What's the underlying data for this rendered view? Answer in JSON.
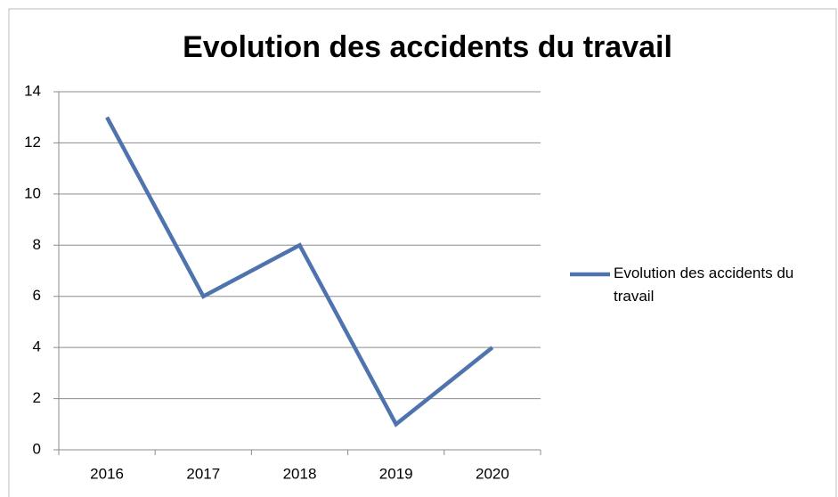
{
  "chart_data": {
    "type": "line",
    "title": "Evolution des accidents du travail",
    "categories": [
      "2016",
      "2017",
      "2018",
      "2019",
      "2020"
    ],
    "series": [
      {
        "name": "Evolution des accidents du travail",
        "color": "#4f74ad",
        "values": [
          13,
          6,
          8,
          1,
          4
        ]
      }
    ],
    "ylim": [
      0,
      14
    ],
    "yticks": [
      0,
      2,
      4,
      6,
      8,
      10,
      12,
      14
    ],
    "grid": true,
    "legend": "right"
  }
}
